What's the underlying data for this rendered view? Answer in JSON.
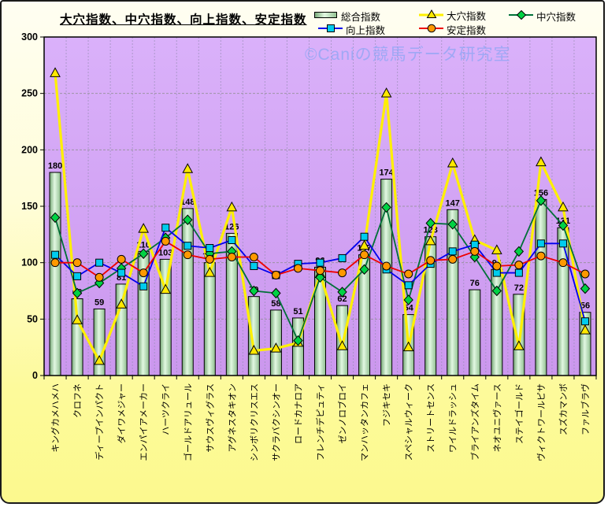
{
  "title": "大穴指数、中穴指数、向上指数、安定指数",
  "watermark": "©Caniの競馬データ研究室",
  "legend": {
    "items": [
      {
        "label": "総合指数",
        "swatch": "green-bar"
      },
      {
        "label": "大穴指数",
        "swatch": "yellow-line-triangle"
      },
      {
        "label": "中穴指数",
        "swatch": "green-line-diamond"
      },
      {
        "label": "向上指数",
        "swatch": "blue-line-square"
      },
      {
        "label": "安定指数",
        "swatch": "red-line-circle"
      }
    ]
  },
  "colors": {
    "plot_bg_top": "#DAB1FA",
    "plot_bg_bottom": "#CB97EE",
    "bar_edge": "#76A876",
    "bar_center": "#E2F8E2",
    "bar_right": "#8FBF8F",
    "yellow_line": "#FFF000",
    "yellow_marker": "#FFE800",
    "green_line": "#007038",
    "green_marker": "#00D244",
    "blue_line": "#0000EE",
    "blue_marker": "#00CCEE",
    "red_line": "#EE0000",
    "red_marker": "#FF9900"
  },
  "chart_data": {
    "type": "bar",
    "subtype": "combo-bar-and-4-marker-lines",
    "title": "大穴指数、中穴指数、向上指数、安定指数",
    "xlabel": "",
    "ylabel": "",
    "ylim": [
      0,
      300
    ],
    "y_ticks": [
      300,
      250,
      200,
      150,
      100,
      50,
      0
    ],
    "grid": true,
    "legend_position": "top-right",
    "categories": [
      "キングカメハメハ",
      "クロフネ",
      "ディープインパクト",
      "ダイワメジャー",
      "エンパイアメーカー",
      "ハーツクライ",
      "ゴールドアリュール",
      "サウスヴィグラス",
      "アグネスタキオン",
      "シンボリクリスエス",
      "サクラバクシンオー",
      "ロードカナロア",
      "フレンチデピュティ",
      "ゼンノロブロイ",
      "マンハッタンカフェ",
      "フジキセキ",
      "スペシャルウィーク",
      "ストリートセンス",
      "ワイルドラッシュ",
      "ブライアンズタイム",
      "ネオユニヴァース",
      "ステイゴールド",
      "ヴィクトワールピサ",
      "スズカマンボ",
      "ファルブラヴ"
    ],
    "series": [
      {
        "name": "総合指数",
        "type": "bar",
        "marker": "none",
        "data_labels": true,
        "values": [
          180,
          68,
          59,
          81,
          110,
          103,
          148,
          100,
          126,
          70,
          58,
          51,
          96,
          62,
          107,
          174,
          54,
          123,
          147,
          76,
          94,
          72,
          156,
          131,
          56
        ]
      },
      {
        "name": "大穴指数",
        "type": "line",
        "marker": "triangle",
        "values": [
          268,
          49,
          13,
          63,
          130,
          76,
          183,
          91,
          149,
          22,
          24,
          29,
          90,
          26,
          115,
          250,
          25,
          119,
          188,
          120,
          111,
          26,
          189,
          149,
          40
        ]
      },
      {
        "name": "中穴指数",
        "type": "line",
        "marker": "diamond",
        "values": [
          140,
          73,
          82,
          95,
          108,
          122,
          138,
          108,
          110,
          75,
          73,
          31,
          87,
          74,
          94,
          149,
          67,
          135,
          134,
          105,
          75,
          110,
          155,
          133,
          77
        ]
      },
      {
        "name": "向上指数",
        "type": "line",
        "marker": "square",
        "values": [
          107,
          88,
          100,
          91,
          79,
          131,
          115,
          113,
          120,
          97,
          89,
          99,
          100,
          104,
          123,
          94,
          80,
          99,
          110,
          116,
          91,
          91,
          117,
          117,
          48
        ]
      },
      {
        "name": "安定指数",
        "type": "line",
        "marker": "circle",
        "values": [
          100,
          100,
          87,
          103,
          91,
          119,
          107,
          103,
          105,
          105,
          89,
          95,
          93,
          91,
          107,
          97,
          90,
          102,
          103,
          110,
          97,
          98,
          106,
          100,
          90
        ]
      }
    ]
  }
}
